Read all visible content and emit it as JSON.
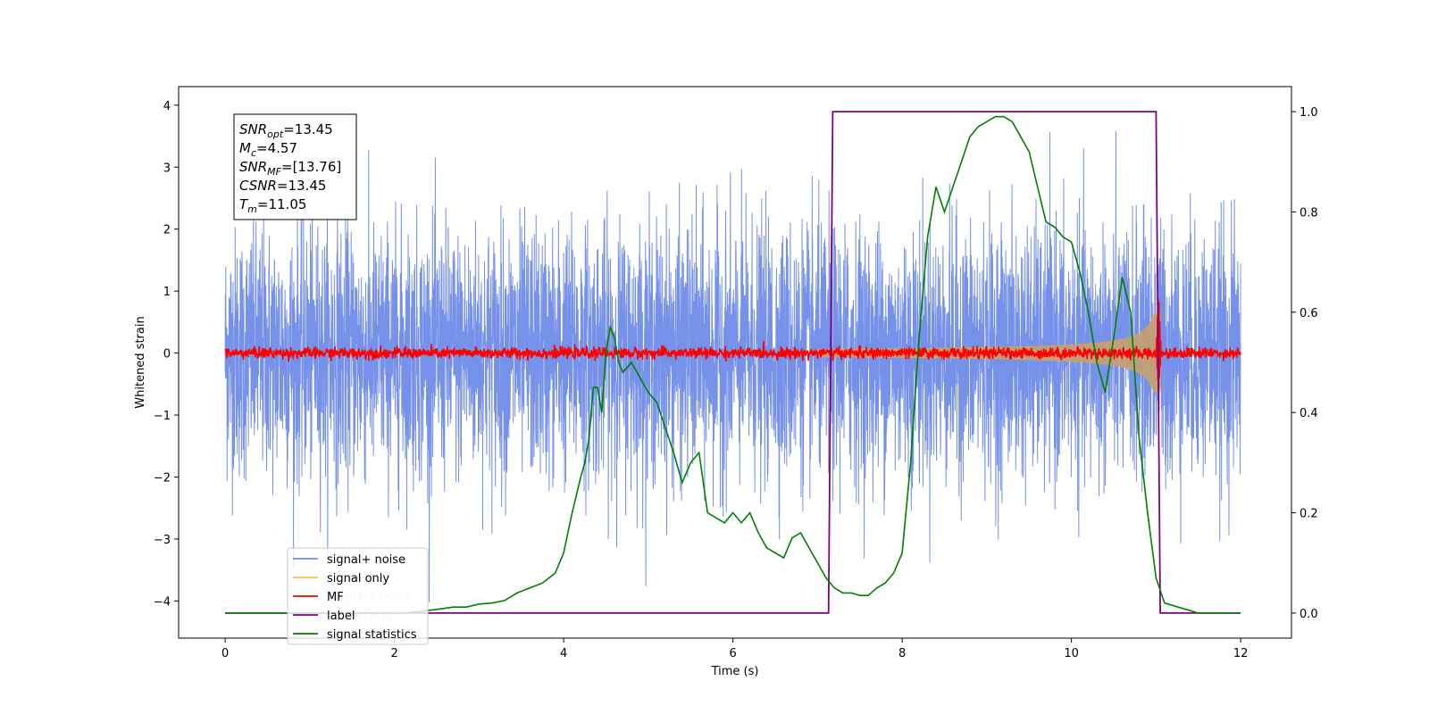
{
  "chart_data": {
    "type": "line",
    "xlabel": "Time (s)",
    "ylabel": "Whitened strain",
    "xlim": [
      -0.55,
      12.6
    ],
    "ylim": [
      -4.6,
      4.3
    ],
    "y2lim": [
      -0.05,
      1.05
    ],
    "x_ticks": [
      "0",
      "2",
      "4",
      "6",
      "8",
      "10",
      "12"
    ],
    "y_ticks": [
      "4",
      "3",
      "2",
      "1",
      "0",
      "−1",
      "−2",
      "−3",
      "−4"
    ],
    "y2_ticks": [
      "0.0",
      "0.2",
      "0.4",
      "0.6",
      "0.8",
      "1.0"
    ],
    "grid": false,
    "legend_position": "lower-left",
    "legend": [
      {
        "label": "signal+ noise",
        "color": "#6f8be8"
      },
      {
        "label": "signal only",
        "color": "#ffc04d"
      },
      {
        "label": "MF",
        "color": "#ff0000"
      },
      {
        "label": "label",
        "color": "#800080"
      },
      {
        "label": "signal statistics",
        "color": "#008000"
      }
    ],
    "ghost_legend": [
      "signal+ noise",
      "signal only"
    ],
    "info_box": [
      {
        "base": "SNR",
        "sub": "opt",
        "value": "=13.45"
      },
      {
        "base": "M",
        "sub": "c",
        "value": "=4.57"
      },
      {
        "base": "SNR",
        "sub": "MF",
        "value": "=[13.76]"
      },
      {
        "base": "CSNR",
        "sub": "",
        "value": "=13.45"
      },
      {
        "base": "T",
        "sub": "m",
        "value": "=11.05"
      }
    ],
    "series": [
      {
        "name": "signal+ noise",
        "color": "#6f8be8",
        "x_range": [
          0,
          12
        ],
        "noise_sigma": 1.0,
        "clip": [
          -4.22,
          3.92
        ]
      },
      {
        "name": "signal only",
        "color": "#c8a06e",
        "chirp_start": 7.0,
        "chirp_end": 11.05,
        "peak_amplitude": 0.95
      },
      {
        "name": "MF",
        "color": "#ff0000",
        "noise_sigma": 0.045,
        "spike_x": 11.03,
        "spike_y": 1.0
      },
      {
        "name": "label",
        "color": "#800080",
        "axis": "right",
        "x": [
          0,
          7.13,
          7.18,
          11.0,
          11.05,
          12.0
        ],
        "y": [
          0,
          0,
          1,
          1,
          0,
          0
        ]
      },
      {
        "name": "signal statistics",
        "color": "#008000",
        "axis": "right",
        "x": [
          0,
          0.3,
          0.6,
          0.9,
          1.2,
          1.5,
          1.8,
          2.1,
          2.4,
          2.7,
          2.85,
          3.0,
          3.15,
          3.3,
          3.45,
          3.6,
          3.75,
          3.9,
          4.0,
          4.1,
          4.2,
          4.25,
          4.3,
          4.35,
          4.4,
          4.45,
          4.5,
          4.55,
          4.6,
          4.65,
          4.7,
          4.8,
          4.9,
          5.0,
          5.1,
          5.2,
          5.3,
          5.4,
          5.5,
          5.6,
          5.7,
          5.8,
          5.9,
          6.0,
          6.1,
          6.2,
          6.3,
          6.4,
          6.5,
          6.6,
          6.7,
          6.8,
          6.9,
          7.0,
          7.1,
          7.2,
          7.3,
          7.4,
          7.5,
          7.6,
          7.7,
          7.8,
          7.9,
          8.0,
          8.1,
          8.2,
          8.3,
          8.4,
          8.5,
          8.6,
          8.7,
          8.8,
          8.9,
          9.0,
          9.1,
          9.2,
          9.3,
          9.4,
          9.5,
          9.6,
          9.7,
          9.8,
          9.9,
          10.0,
          10.1,
          10.2,
          10.3,
          10.4,
          10.5,
          10.6,
          10.7,
          10.8,
          10.9,
          11.0,
          11.1,
          11.5,
          12.0
        ],
        "y": [
          0.0,
          0.0,
          0.0,
          0.0,
          0.0,
          0.0,
          0.0,
          0.0,
          0.005,
          0.012,
          0.012,
          0.018,
          0.02,
          0.025,
          0.04,
          0.05,
          0.06,
          0.08,
          0.12,
          0.2,
          0.27,
          0.3,
          0.35,
          0.45,
          0.45,
          0.4,
          0.52,
          0.57,
          0.55,
          0.5,
          0.48,
          0.5,
          0.47,
          0.44,
          0.42,
          0.37,
          0.32,
          0.26,
          0.3,
          0.32,
          0.2,
          0.19,
          0.18,
          0.2,
          0.18,
          0.2,
          0.16,
          0.13,
          0.12,
          0.11,
          0.15,
          0.16,
          0.13,
          0.1,
          0.07,
          0.05,
          0.04,
          0.04,
          0.035,
          0.035,
          0.05,
          0.06,
          0.08,
          0.12,
          0.3,
          0.55,
          0.75,
          0.85,
          0.8,
          0.85,
          0.9,
          0.95,
          0.97,
          0.98,
          0.99,
          0.99,
          0.98,
          0.95,
          0.92,
          0.85,
          0.78,
          0.77,
          0.75,
          0.74,
          0.68,
          0.6,
          0.5,
          0.44,
          0.55,
          0.67,
          0.6,
          0.35,
          0.2,
          0.07,
          0.02,
          0.0,
          0.0
        ]
      }
    ]
  }
}
